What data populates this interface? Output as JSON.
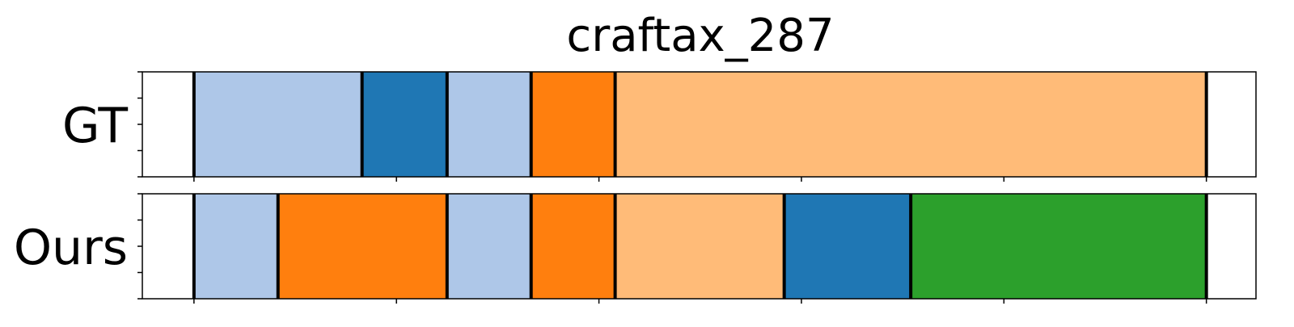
{
  "chart_data": {
    "type": "bar",
    "title": "craftax_287",
    "xlabel": "",
    "ylabel": "",
    "xlim": [
      0,
      1
    ],
    "grid": false,
    "legend": "none",
    "rows": [
      {
        "label": "GT",
        "segments": [
          {
            "start": 0.051,
            "end": 0.217,
            "color": "#aec7e8"
          },
          {
            "start": 0.217,
            "end": 0.301,
            "color": "#1f77b4"
          },
          {
            "start": 0.301,
            "end": 0.384,
            "color": "#aec7e8"
          },
          {
            "start": 0.384,
            "end": 0.467,
            "color": "#ff7f0e"
          },
          {
            "start": 0.467,
            "end": 1.051,
            "color": "#ffbb78"
          }
        ]
      },
      {
        "label": "Ours",
        "segments": [
          {
            "start": 0.051,
            "end": 0.134,
            "color": "#aec7e8"
          },
          {
            "start": 0.134,
            "end": 0.301,
            "color": "#ff7f0e"
          },
          {
            "start": 0.301,
            "end": 0.384,
            "color": "#aec7e8"
          },
          {
            "start": 0.384,
            "end": 0.467,
            "color": "#ff7f0e"
          },
          {
            "start": 0.467,
            "end": 0.634,
            "color": "#ffbb78"
          },
          {
            "start": 0.634,
            "end": 0.759,
            "color": "#1f77b4"
          },
          {
            "start": 0.759,
            "end": 1.051,
            "color": "#2ca02c"
          }
        ]
      }
    ],
    "xticks": [
      0.051,
      0.251,
      0.451,
      0.651,
      0.851,
      1.051
    ],
    "xlim_full": [
      0,
      1.1
    ]
  }
}
